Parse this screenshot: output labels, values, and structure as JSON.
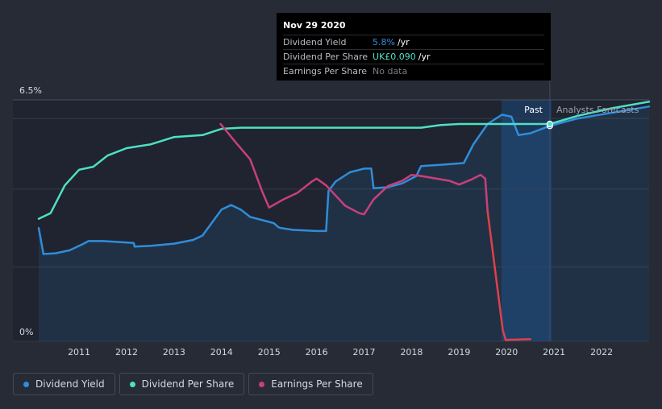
{
  "tooltip": {
    "date": "Nov 29 2020",
    "rows": [
      {
        "label": "Dividend Yield",
        "value": "5.8%",
        "unit": "/yr",
        "color": "#2f8ddb"
      },
      {
        "label": "Dividend Per Share",
        "value": "UK£0.090",
        "unit": "/yr",
        "color": "#4ee0c4"
      },
      {
        "label": "Earnings Per Share",
        "value": "No data",
        "unit": "",
        "color": "#777b83"
      }
    ]
  },
  "labels": {
    "past": "Past",
    "forecast": "Analysts Forecasts"
  },
  "legend": [
    {
      "label": "Dividend Yield",
      "color": "#2f8ddb"
    },
    {
      "label": "Dividend Per Share",
      "color": "#4ee0c4"
    },
    {
      "label": "Earnings Per Share",
      "color": "#c93f7c"
    }
  ],
  "colors": {
    "background": "#262b36",
    "plot": "#1f2430",
    "yield": "#2f8ddb",
    "dps": "#4ee0c4",
    "eps": "#c93f7c",
    "eps_drop": "#e0404a"
  },
  "chart_data": {
    "type": "line",
    "x_ticks": [
      "2011",
      "2012",
      "2013",
      "2014",
      "2015",
      "2016",
      "2017",
      "2018",
      "2019",
      "2020",
      "2021",
      "2022"
    ],
    "y_ticks": [
      "0%",
      "6.5%"
    ],
    "ylim": [
      0,
      6.5
    ],
    "xlim": [
      2010.15,
      2023.0
    ],
    "past_end": 2020.91,
    "grid": true,
    "legend_position": "bottom-left",
    "series": [
      {
        "name": "Dividend Yield",
        "key": "yield",
        "points": [
          [
            2010.15,
            3.05
          ],
          [
            2010.25,
            2.35
          ],
          [
            2010.5,
            2.37
          ],
          [
            2010.8,
            2.45
          ],
          [
            2011.05,
            2.6
          ],
          [
            2011.2,
            2.7
          ],
          [
            2011.5,
            2.7
          ],
          [
            2012.15,
            2.65
          ],
          [
            2012.17,
            2.55
          ],
          [
            2012.5,
            2.57
          ],
          [
            2013.0,
            2.63
          ],
          [
            2013.4,
            2.73
          ],
          [
            2013.6,
            2.85
          ],
          [
            2014.0,
            3.55
          ],
          [
            2014.2,
            3.67
          ],
          [
            2014.4,
            3.55
          ],
          [
            2014.6,
            3.35
          ],
          [
            2014.9,
            3.25
          ],
          [
            2015.1,
            3.18
          ],
          [
            2015.2,
            3.07
          ],
          [
            2015.25,
            3.05
          ],
          [
            2015.5,
            3.0
          ],
          [
            2016.0,
            2.97
          ],
          [
            2016.2,
            2.97
          ],
          [
            2016.25,
            4.05
          ],
          [
            2016.4,
            4.3
          ],
          [
            2016.7,
            4.55
          ],
          [
            2017.0,
            4.65
          ],
          [
            2017.15,
            4.65
          ],
          [
            2017.2,
            4.12
          ],
          [
            2017.5,
            4.15
          ],
          [
            2017.8,
            4.25
          ],
          [
            2018.1,
            4.45
          ],
          [
            2018.2,
            4.72
          ],
          [
            2018.6,
            4.75
          ],
          [
            2019.1,
            4.8
          ],
          [
            2019.3,
            5.3
          ],
          [
            2019.6,
            5.85
          ],
          [
            2019.9,
            6.1
          ],
          [
            2020.1,
            6.05
          ],
          [
            2020.25,
            5.55
          ],
          [
            2020.5,
            5.6
          ],
          [
            2020.91,
            5.8
          ],
          [
            2021.5,
            6.0
          ],
          [
            2022.2,
            6.15
          ],
          [
            2023.0,
            6.32
          ]
        ]
      },
      {
        "name": "Dividend Per Share",
        "key": "dps",
        "points": [
          [
            2010.15,
            3.3
          ],
          [
            2010.4,
            3.45
          ],
          [
            2010.7,
            4.2
          ],
          [
            2011.0,
            4.62
          ],
          [
            2011.3,
            4.7
          ],
          [
            2011.6,
            5.0
          ],
          [
            2012.0,
            5.2
          ],
          [
            2012.5,
            5.3
          ],
          [
            2013.0,
            5.5
          ],
          [
            2013.6,
            5.55
          ],
          [
            2014.0,
            5.72
          ],
          [
            2014.4,
            5.75
          ],
          [
            2016.0,
            5.75
          ],
          [
            2018.2,
            5.75
          ],
          [
            2018.6,
            5.82
          ],
          [
            2019.0,
            5.85
          ],
          [
            2020.91,
            5.85
          ],
          [
            2021.5,
            6.07
          ],
          [
            2022.2,
            6.27
          ],
          [
            2023.0,
            6.45
          ]
        ]
      },
      {
        "name": "Earnings Per Share",
        "key": "eps",
        "points": [
          [
            2013.98,
            5.85
          ],
          [
            2014.3,
            5.35
          ],
          [
            2014.6,
            4.9
          ],
          [
            2014.85,
            4.05
          ],
          [
            2015.0,
            3.6
          ],
          [
            2015.3,
            3.82
          ],
          [
            2015.6,
            4.0
          ],
          [
            2015.9,
            4.3
          ],
          [
            2016.0,
            4.38
          ],
          [
            2016.2,
            4.2
          ],
          [
            2016.6,
            3.65
          ],
          [
            2016.9,
            3.45
          ],
          [
            2017.0,
            3.42
          ],
          [
            2017.2,
            3.82
          ],
          [
            2017.5,
            4.18
          ],
          [
            2017.8,
            4.32
          ],
          [
            2018.0,
            4.48
          ],
          [
            2018.2,
            4.45
          ],
          [
            2018.8,
            4.32
          ],
          [
            2019.0,
            4.22
          ],
          [
            2019.25,
            4.35
          ],
          [
            2019.45,
            4.48
          ],
          [
            2019.55,
            4.38
          ],
          [
            2019.6,
            3.5
          ],
          [
            2019.8,
            1.5
          ],
          [
            2019.92,
            0.3
          ],
          [
            2019.98,
            0.04
          ],
          [
            2020.5,
            0.06
          ]
        ]
      }
    ]
  }
}
